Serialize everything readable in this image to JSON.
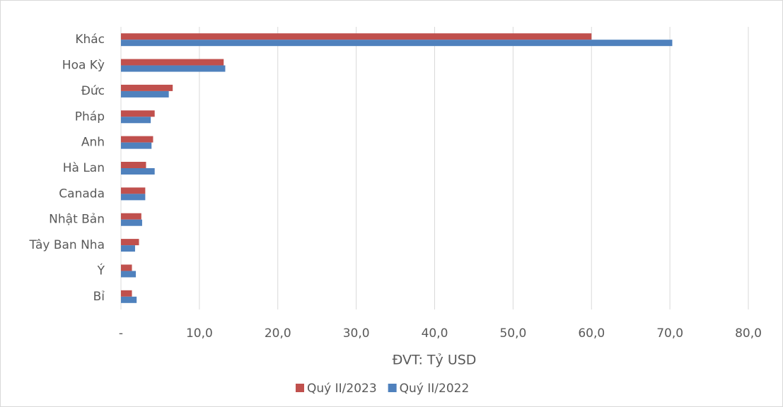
{
  "chart_data": {
    "type": "bar",
    "orientation": "horizontal",
    "x_label": "ĐVT: Tỷ USD",
    "categories": [
      "Khác",
      "Hoa Kỳ",
      "Đức",
      "Pháp",
      "Anh",
      "Hà Lan",
      "Canada",
      "Nhật Bản",
      "Tây Ban Nha",
      "Ý",
      "Bỉ"
    ],
    "series": [
      {
        "name": "Quý II/2023",
        "color": "#c0504d",
        "values": [
          60.0,
          13.1,
          6.6,
          4.3,
          4.1,
          3.2,
          3.1,
          2.6,
          2.3,
          1.4,
          1.4
        ]
      },
      {
        "name": "Quý II/2022",
        "color": "#4f81bd",
        "values": [
          70.3,
          13.3,
          6.1,
          3.8,
          3.9,
          4.3,
          3.1,
          2.7,
          1.8,
          1.9,
          2.0
        ]
      }
    ],
    "xlim": [
      0,
      80
    ],
    "xticks": [
      {
        "value": 0,
        "label": "-"
      },
      {
        "value": 10,
        "label": "10,0"
      },
      {
        "value": 20,
        "label": "20,0"
      },
      {
        "value": 30,
        "label": "30,0"
      },
      {
        "value": 40,
        "label": "40,0"
      },
      {
        "value": 50,
        "label": "50,0"
      },
      {
        "value": 60,
        "label": "60,0"
      },
      {
        "value": 70,
        "label": "70,0"
      },
      {
        "value": 80,
        "label": "80,0"
      }
    ],
    "grid": true,
    "legend": "bottom"
  }
}
